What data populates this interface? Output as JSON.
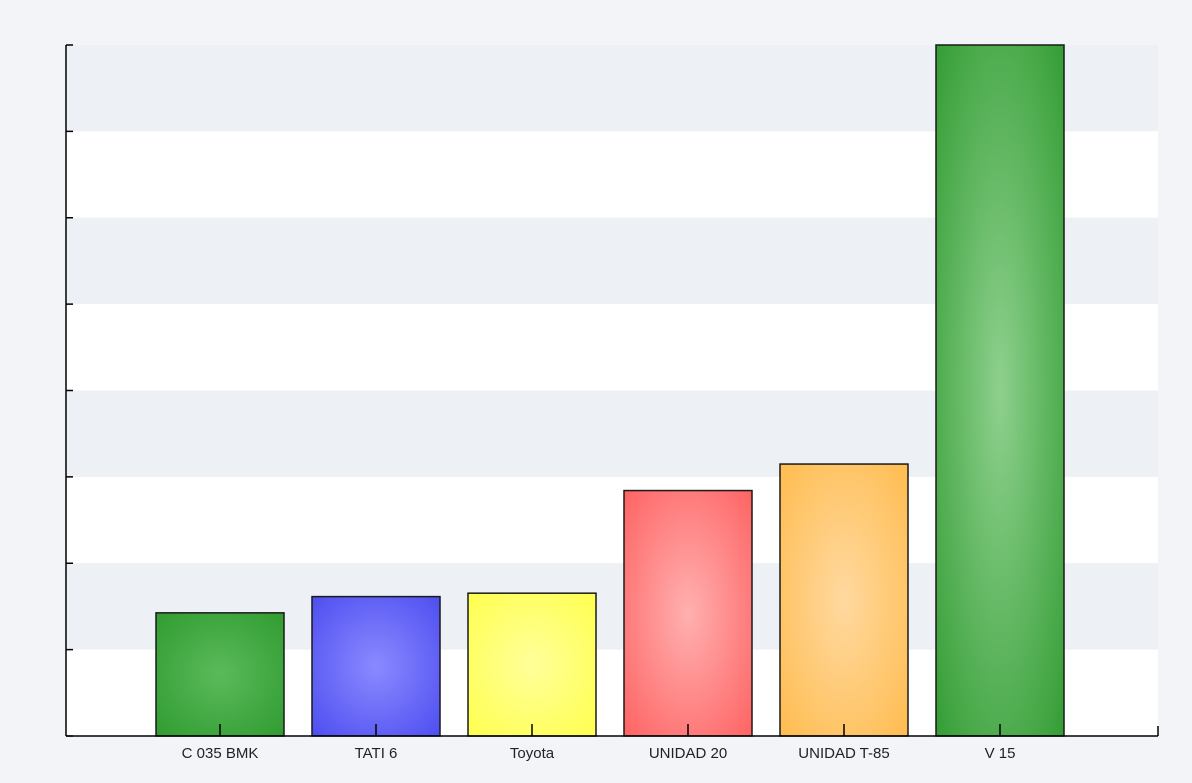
{
  "chart_data": {
    "type": "bar",
    "categories": [
      "C 035 BMK",
      "TATI 6",
      "Toyota",
      "UNIDAD 20",
      "UNIDAD T-85",
      "V 15"
    ],
    "values": [
      144,
      163,
      167,
      287,
      318,
      808
    ],
    "ylim": [
      0,
      808
    ],
    "y_ticks": 8,
    "grid": "alternating horizontal bands",
    "legend": "none",
    "colors": {
      "bars": [
        "#2e9a2e",
        "#4a4af0",
        "#ffff4a",
        "#ff5e5e",
        "#ffba4a",
        "#2e9a2e"
      ],
      "bars_light": [
        "#5aba5a",
        "#8a8aff",
        "#ffff9a",
        "#ffb0b0",
        "#ffd9a0",
        "#8ed08e"
      ],
      "band_shade": "#edf0f4",
      "band_light": "#ffffff",
      "axis": "#000000"
    }
  }
}
